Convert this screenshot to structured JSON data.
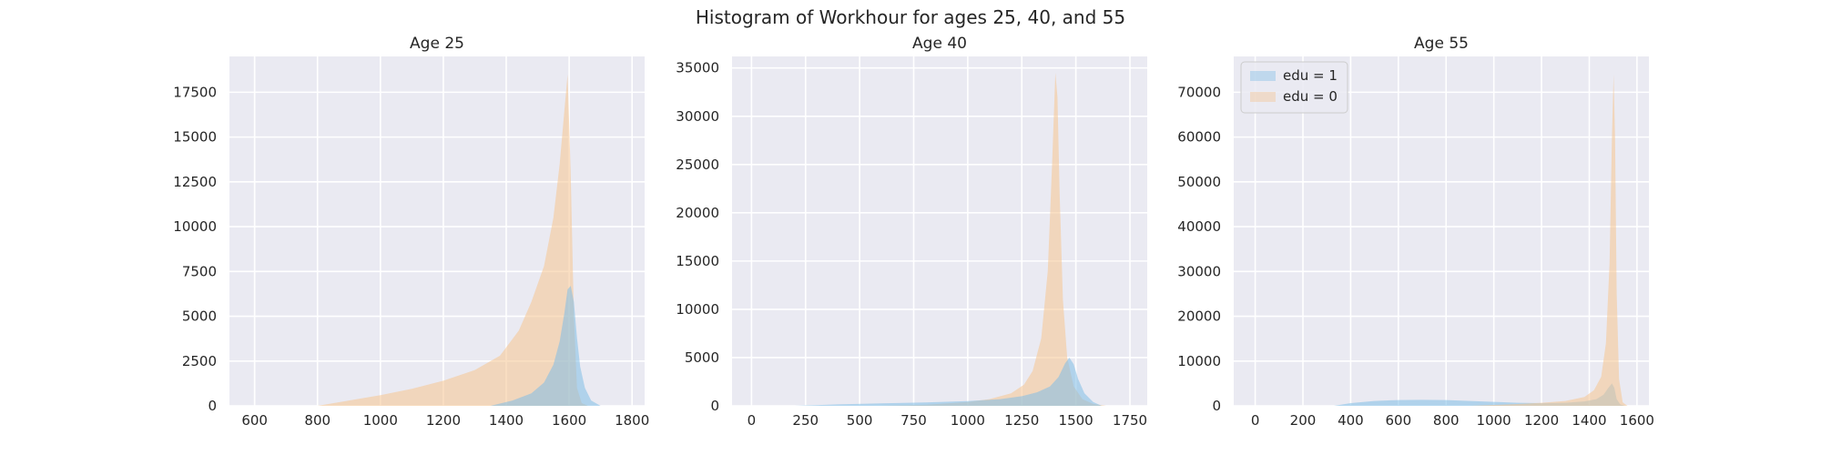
{
  "figure": {
    "suptitle": "Histogram of Workhour for ages 25, 40, and 55"
  },
  "colors": {
    "panel_bg": "#eaeaf2",
    "grid": "#ffffff",
    "edu0": "#f5c48f",
    "edu1": "#7fbde6"
  },
  "chart_data": [
    {
      "type": "area",
      "title": "Age 25",
      "xlabel": "",
      "ylabel": "",
      "xlim": [
        520,
        1840
      ],
      "ylim": [
        0,
        19500
      ],
      "xticks": [
        600,
        800,
        1000,
        1200,
        1400,
        1600,
        1800
      ],
      "yticks": [
        0,
        2500,
        5000,
        7500,
        10000,
        12500,
        15000,
        17500
      ],
      "grid": true,
      "legend": null,
      "series": [
        {
          "name": "edu = 0",
          "x": [
            800,
            900,
            1000,
            1100,
            1200,
            1300,
            1380,
            1440,
            1480,
            1520,
            1550,
            1570,
            1585,
            1595,
            1605,
            1615,
            1625,
            1640,
            1660
          ],
          "y": [
            0,
            300,
            600,
            950,
            1400,
            2000,
            2800,
            4200,
            5800,
            7800,
            10500,
            13500,
            16500,
            18500,
            13000,
            5000,
            1000,
            150,
            0
          ]
        },
        {
          "name": "edu = 1",
          "x": [
            1350,
            1420,
            1480,
            1520,
            1550,
            1570,
            1585,
            1595,
            1605,
            1615,
            1625,
            1635,
            1650,
            1670,
            1700
          ],
          "y": [
            0,
            300,
            700,
            1300,
            2300,
            3600,
            5200,
            6500,
            6700,
            5800,
            3800,
            2200,
            1000,
            300,
            0
          ]
        }
      ]
    },
    {
      "type": "area",
      "title": "Age 40",
      "xlabel": "",
      "ylabel": "",
      "xlim": [
        -90,
        1830
      ],
      "ylim": [
        0,
        36200
      ],
      "xticks": [
        0,
        250,
        500,
        750,
        1000,
        1250,
        1500,
        1750
      ],
      "yticks": [
        0,
        5000,
        10000,
        15000,
        20000,
        25000,
        30000,
        35000
      ],
      "grid": true,
      "legend": null,
      "series": [
        {
          "name": "edu = 0",
          "x": [
            600,
            800,
            1000,
            1100,
            1200,
            1260,
            1300,
            1340,
            1370,
            1390,
            1405,
            1415,
            1425,
            1440,
            1460,
            1490,
            1530,
            1580,
            1640
          ],
          "y": [
            0,
            100,
            400,
            700,
            1300,
            2200,
            3600,
            7000,
            14000,
            25000,
            34500,
            32000,
            22000,
            11000,
            5000,
            2000,
            700,
            200,
            0
          ]
        },
        {
          "name": "edu = 1",
          "x": [
            200,
            400,
            600,
            800,
            1000,
            1150,
            1250,
            1320,
            1380,
            1420,
            1450,
            1470,
            1490,
            1510,
            1540,
            1580,
            1620
          ],
          "y": [
            0,
            150,
            250,
            350,
            500,
            700,
            1000,
            1400,
            2000,
            3000,
            4400,
            5000,
            4300,
            2800,
            1300,
            400,
            0
          ]
        }
      ]
    },
    {
      "type": "area",
      "title": "Age 55",
      "xlabel": "",
      "ylabel": "",
      "xlim": [
        -90,
        1650
      ],
      "ylim": [
        0,
        78000
      ],
      "xticks": [
        0,
        200,
        400,
        600,
        800,
        1000,
        1200,
        1400,
        1600
      ],
      "yticks": [
        0,
        10000,
        20000,
        30000,
        40000,
        50000,
        60000,
        70000
      ],
      "grid": true,
      "legend": {
        "position": "upper-left",
        "entries": [
          "edu = 1",
          "edu = 0"
        ]
      },
      "series": [
        {
          "name": "edu = 1",
          "x": [
            330,
            400,
            500,
            600,
            700,
            800,
            900,
            1000,
            1100,
            1200,
            1300,
            1380,
            1430,
            1460,
            1480,
            1495,
            1505,
            1515,
            1530,
            1550
          ],
          "y": [
            0,
            600,
            1100,
            1300,
            1350,
            1300,
            1100,
            900,
            700,
            600,
            700,
            1000,
            1500,
            2500,
            4000,
            5000,
            4000,
            1500,
            300,
            0
          ]
        },
        {
          "name": "edu = 0",
          "x": [
            900,
            1000,
            1100,
            1200,
            1300,
            1380,
            1420,
            1450,
            1470,
            1485,
            1495,
            1502,
            1508,
            1515,
            1525,
            1540,
            1560
          ],
          "y": [
            0,
            200,
            400,
            700,
            1100,
            2000,
            3500,
            6500,
            14000,
            32000,
            60000,
            74000,
            60000,
            25000,
            6000,
            800,
            0
          ]
        }
      ]
    }
  ]
}
